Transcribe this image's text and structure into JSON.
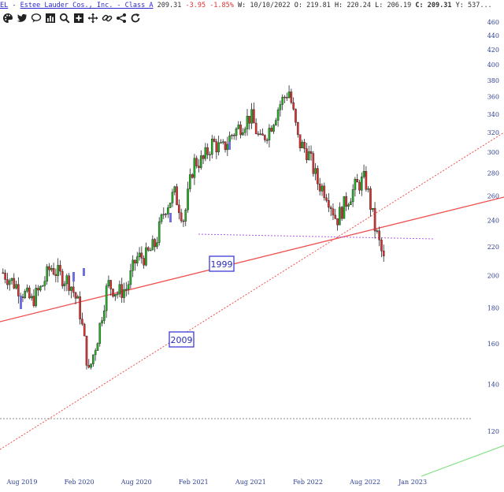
{
  "header": {
    "ticker": "EL",
    "sep": " - ",
    "name": "Estee Lauder Cos., Inc. - Class A",
    "last": "209.31",
    "change": "-3.95",
    "change_pct": "-1.85%",
    "period_label": "W:",
    "date": "10/10/2022",
    "open_label": "O:",
    "open": "219.81",
    "high_label": "H:",
    "high": "220.24",
    "low_label": "L:",
    "low": "206.19",
    "close_label": "C:",
    "close": "209.31",
    "vol_label": "Y:",
    "vol": "537..."
  },
  "toolbar": {
    "icons": [
      "palette-icon",
      "twitter-icon",
      "comment-icon",
      "chart-bars-icon",
      "search-icon",
      "zoom-in-icon",
      "move-icon",
      "link-icon",
      "share-icon",
      "refresh-icon"
    ]
  },
  "colors": {
    "up": "#22b022",
    "down": "#e03030",
    "wick": "#222222",
    "trend_red": "#f05050",
    "trend_green": "#80e080",
    "support_purple": "#b060e0",
    "axis_text": "#2e3f8f"
  },
  "chart_data": {
    "type": "candlestick",
    "scale": "log",
    "ylim": [
      110,
      470
    ],
    "y_ticks": [
      120,
      140,
      160,
      180,
      200,
      220,
      240,
      260,
      280,
      300,
      320,
      340,
      360,
      380,
      400,
      420,
      440,
      460
    ],
    "x_ticks": [
      "Aug 2019",
      "Feb 2020",
      "Aug 2020",
      "Feb 2021",
      "Aug 2021",
      "Feb 2022",
      "Aug 2022",
      "Jan 2023"
    ],
    "annotations": [
      {
        "label": "1999"
      },
      {
        "label": "2009"
      }
    ],
    "weekly_close_path": [
      {
        "date": "2019-06",
        "close": 202
      },
      {
        "date": "2019-08",
        "close": 190
      },
      {
        "date": "2019-09",
        "close": 184
      },
      {
        "date": "2019-10",
        "close": 192
      },
      {
        "date": "2019-11",
        "close": 206
      },
      {
        "date": "2019-12",
        "close": 200
      },
      {
        "date": "2020-01",
        "close": 196
      },
      {
        "date": "2020-02",
        "close": 180
      },
      {
        "date": "2020-03",
        "close": 145
      },
      {
        "date": "2020-04",
        "close": 165
      },
      {
        "date": "2020-05",
        "close": 195
      },
      {
        "date": "2020-06",
        "close": 189
      },
      {
        "date": "2020-07",
        "close": 192
      },
      {
        "date": "2020-08",
        "close": 212
      },
      {
        "date": "2020-09",
        "close": 213
      },
      {
        "date": "2020-10",
        "close": 222
      },
      {
        "date": "2020-11",
        "close": 250
      },
      {
        "date": "2020-12",
        "close": 262
      },
      {
        "date": "2021-01",
        "close": 240
      },
      {
        "date": "2021-02",
        "close": 290
      },
      {
        "date": "2021-03",
        "close": 292
      },
      {
        "date": "2021-04",
        "close": 310
      },
      {
        "date": "2021-05",
        "close": 302
      },
      {
        "date": "2021-06",
        "close": 318
      },
      {
        "date": "2021-07",
        "close": 328
      },
      {
        "date": "2021-08",
        "close": 338
      },
      {
        "date": "2021-09",
        "close": 310
      },
      {
        "date": "2021-10",
        "close": 325
      },
      {
        "date": "2021-11",
        "close": 350
      },
      {
        "date": "2021-12",
        "close": 368
      },
      {
        "date": "2022-01",
        "close": 310
      },
      {
        "date": "2022-02",
        "close": 300
      },
      {
        "date": "2022-03",
        "close": 272
      },
      {
        "date": "2022-04",
        "close": 262
      },
      {
        "date": "2022-05",
        "close": 240
      },
      {
        "date": "2022-06",
        "close": 255
      },
      {
        "date": "2022-07",
        "close": 268
      },
      {
        "date": "2022-08",
        "close": 275
      },
      {
        "date": "2022-09",
        "close": 235
      },
      {
        "date": "2022-10",
        "close": 209
      }
    ]
  }
}
